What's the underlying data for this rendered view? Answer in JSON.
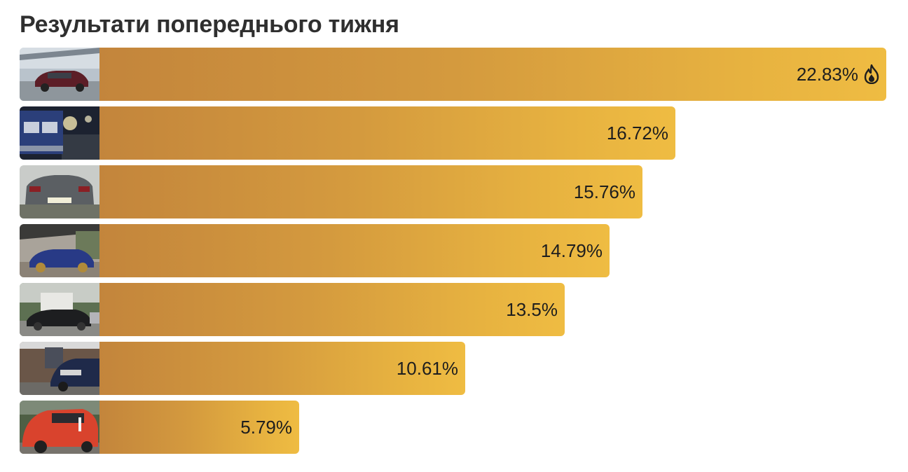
{
  "title": "Результати попереднього тижня",
  "chart_data": {
    "type": "bar",
    "orientation": "horizontal",
    "title": "Результати попереднього тижня",
    "categories": [
      "",
      "",
      "",
      "",
      "",
      "",
      ""
    ],
    "values": [
      22.83,
      16.72,
      15.76,
      14.79,
      13.5,
      10.61,
      5.79
    ],
    "labels": [
      "22.83%",
      "16.72%",
      "15.76%",
      "14.79%",
      "13.5%",
      "10.61%",
      "5.79%"
    ],
    "unit": "%",
    "top_marker_icon": "fire-icon",
    "thumbnails": [
      "car-thumbnail-maroon-sedan",
      "car-thumbnail-blue-classic-headlights",
      "car-thumbnail-gray-sedan-rear",
      "car-thumbnail-blue-muscle-car",
      "car-thumbnail-black-roadster",
      "car-thumbnail-dark-blue-hatchback",
      "car-thumbnail-orange-small-car"
    ],
    "colors": {
      "bar_start": "#c3853c",
      "bar_end": "#efbc42",
      "text": "#1e1e1e",
      "title": "#2f2f2f"
    },
    "xlim": [
      0,
      22.83
    ]
  }
}
